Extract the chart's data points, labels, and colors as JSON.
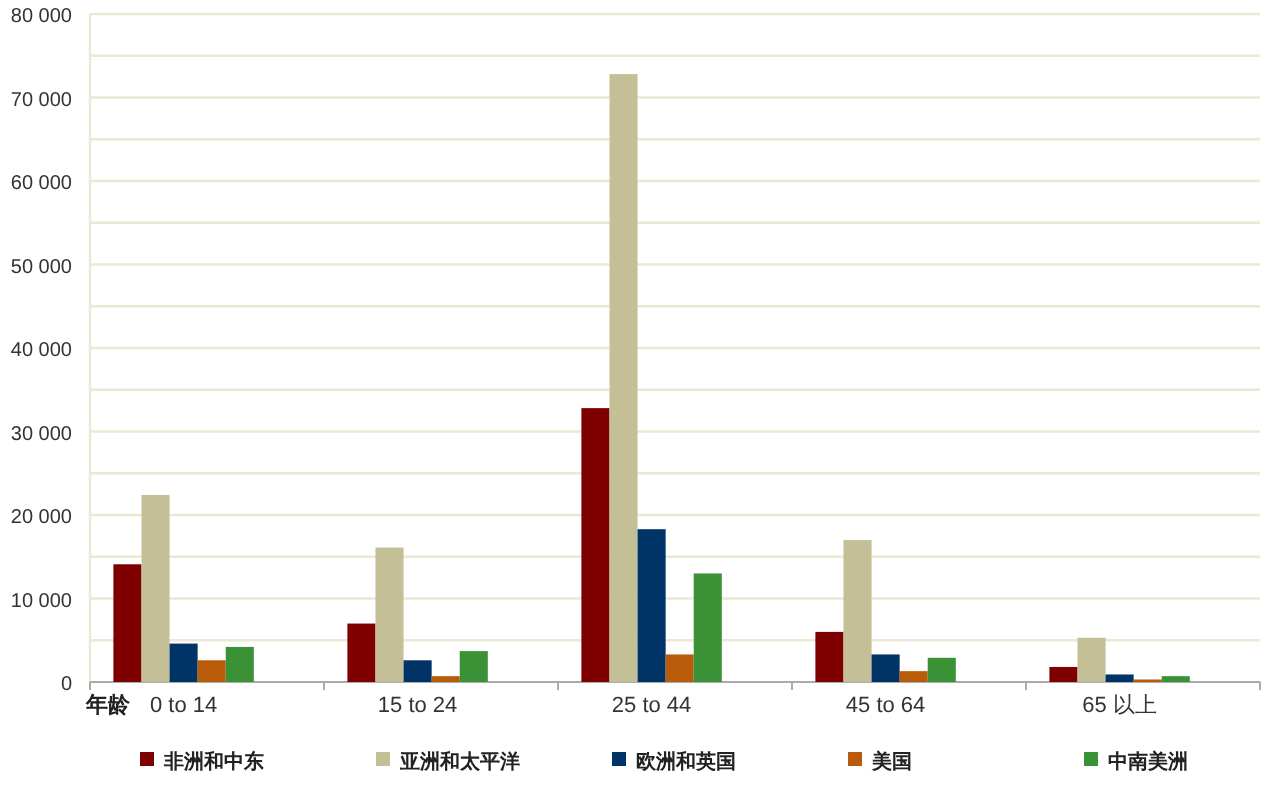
{
  "chart_data": {
    "type": "bar",
    "xlabel": "年龄",
    "categories": [
      "0 to 14",
      "15 to 24",
      "25 to 44",
      "45 to 64",
      "65 以上"
    ],
    "series": [
      {
        "name": "非洲和中东",
        "color": "#7f0000",
        "values": [
          14100,
          7000,
          32800,
          6000,
          1800
        ]
      },
      {
        "name": "亚洲和太平洋",
        "color": "#c4bf96",
        "values": [
          22400,
          16100,
          72800,
          17000,
          5300
        ]
      },
      {
        "name": "欧洲和英国",
        "color": "#003366",
        "values": [
          4600,
          2600,
          18300,
          3300,
          900
        ]
      },
      {
        "name": "美国",
        "color": "#b85c0a",
        "values": [
          2600,
          700,
          3300,
          1300,
          300
        ]
      },
      {
        "name": "中南美洲",
        "color": "#3b9135",
        "values": [
          4200,
          3700,
          13000,
          2900,
          700
        ]
      }
    ],
    "ylim": [
      0,
      80000
    ],
    "yticks": [
      {
        "value": 0,
        "label": "0"
      },
      {
        "value": 5000,
        "label": null
      },
      {
        "value": 10000,
        "label": "10 000"
      },
      {
        "value": 15000,
        "label": null
      },
      {
        "value": 20000,
        "label": "20 000"
      },
      {
        "value": 25000,
        "label": null
      },
      {
        "value": 30000,
        "label": "30 000"
      },
      {
        "value": 35000,
        "label": null
      },
      {
        "value": 40000,
        "label": "40 000"
      },
      {
        "value": 45000,
        "label": null
      },
      {
        "value": 50000,
        "label": "50 000"
      },
      {
        "value": 55000,
        "label": null
      },
      {
        "value": 60000,
        "label": "60 000"
      },
      {
        "value": 65000,
        "label": null
      },
      {
        "value": 70000,
        "label": "70 000"
      },
      {
        "value": 75000,
        "label": null
      },
      {
        "value": 80000,
        "label": "80 000"
      }
    ],
    "grid": "y",
    "legend": "bottom"
  }
}
